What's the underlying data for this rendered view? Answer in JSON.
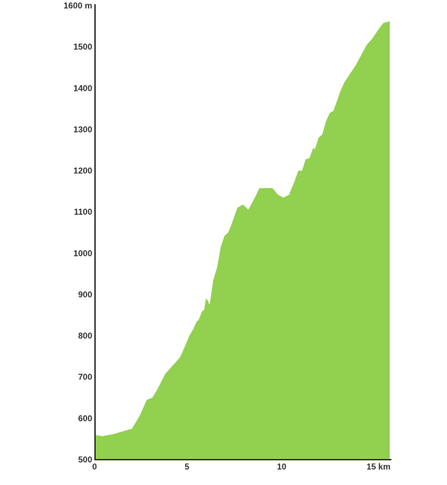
{
  "chart_data": {
    "type": "area",
    "x_unit": "km",
    "y_unit": "m",
    "xlim": [
      0,
      16
    ],
    "ylim": [
      500,
      1600
    ],
    "x_ticks": [
      {
        "value": 0,
        "label": "0"
      },
      {
        "value": 5,
        "label": "5"
      },
      {
        "value": 10,
        "label": "10"
      },
      {
        "value": 15,
        "label": "15 km"
      }
    ],
    "y_ticks": [
      {
        "value": 500,
        "label": "500"
      },
      {
        "value": 600,
        "label": "600"
      },
      {
        "value": 700,
        "label": "700"
      },
      {
        "value": 800,
        "label": "800"
      },
      {
        "value": 900,
        "label": "900"
      },
      {
        "value": 1000,
        "label": "1000"
      },
      {
        "value": 1100,
        "label": "1100"
      },
      {
        "value": 1200,
        "label": "1200"
      },
      {
        "value": 1300,
        "label": "1300"
      },
      {
        "value": 1400,
        "label": "1400"
      },
      {
        "value": 1500,
        "label": "1500"
      },
      {
        "value": 1600,
        "label": "1600 m"
      }
    ],
    "grid": false,
    "fill_color": "#92d050",
    "axis_color": "#333333",
    "series": [
      {
        "x": [
          0,
          0.4,
          1.0,
          1.6,
          2.0,
          2.4,
          2.8,
          3.1,
          3.4,
          3.8,
          4.2,
          4.6,
          4.9,
          5.1,
          5.3,
          5.5,
          5.6,
          5.8,
          5.9,
          6.0,
          6.1,
          6.2,
          6.4,
          6.6,
          6.8,
          7.0,
          7.2,
          7.4,
          7.7,
          8.0,
          8.3,
          8.5,
          8.7,
          8.9,
          9.1,
          9.3,
          9.6,
          9.9,
          10.2,
          10.5,
          10.8,
          11.0,
          11.2,
          11.4,
          11.6,
          11.8,
          11.9,
          12.1,
          12.3,
          12.5,
          12.7,
          12.9,
          13.1,
          13.3,
          13.5,
          13.8,
          14.1,
          14.4,
          14.7,
          15.0,
          15.3,
          15.6,
          15.95
        ],
        "y": [
          560,
          557,
          562,
          570,
          575,
          605,
          645,
          650,
          673,
          708,
          728,
          748,
          778,
          800,
          815,
          835,
          838,
          860,
          862,
          890,
          886,
          875,
          935,
          965,
          1015,
          1042,
          1050,
          1072,
          1110,
          1118,
          1106,
          1122,
          1140,
          1158,
          1158,
          1158,
          1158,
          1142,
          1135,
          1142,
          1175,
          1200,
          1200,
          1228,
          1230,
          1255,
          1252,
          1280,
          1288,
          1320,
          1340,
          1345,
          1370,
          1395,
          1415,
          1435,
          1455,
          1480,
          1505,
          1520,
          1540,
          1558,
          1562
        ]
      }
    ]
  }
}
